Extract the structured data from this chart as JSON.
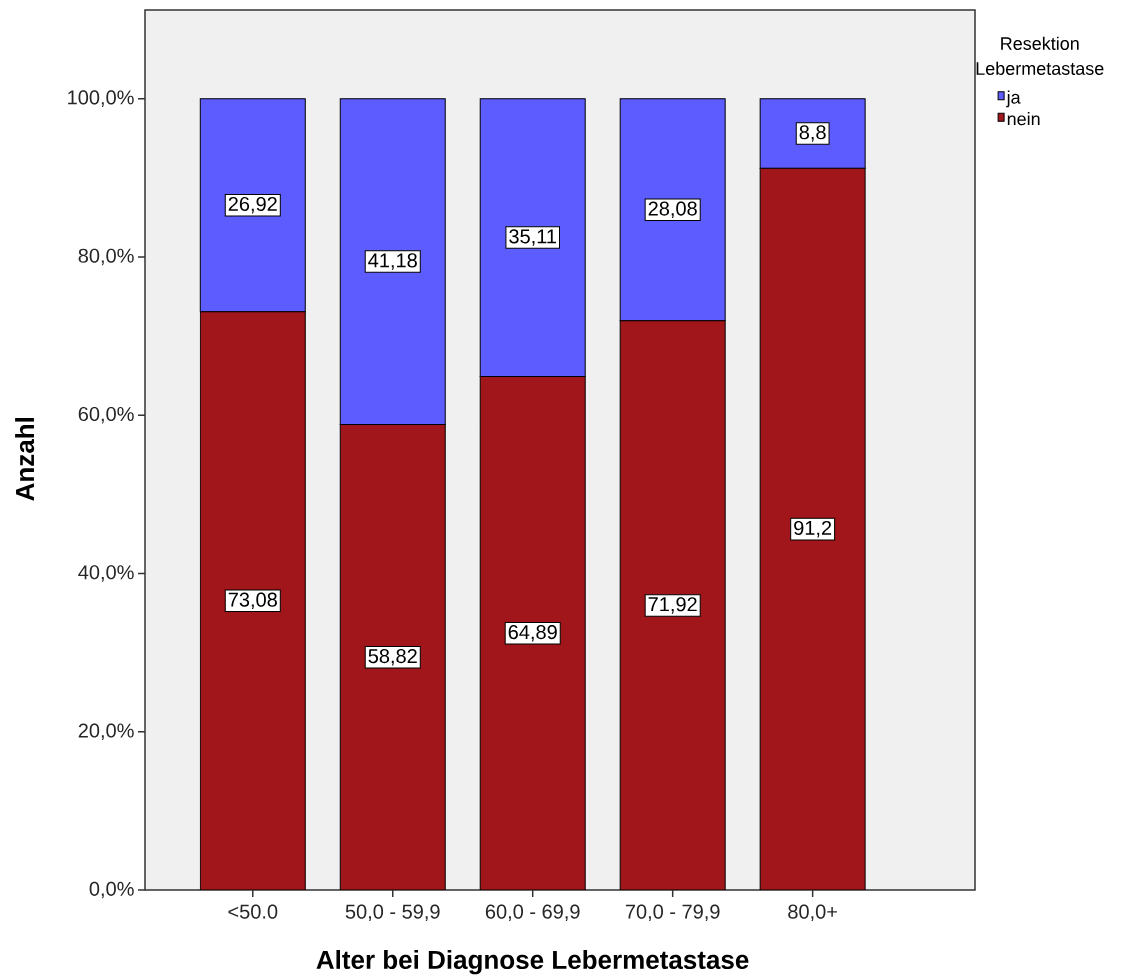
{
  "chart_data": {
    "type": "bar",
    "stacked": true,
    "xlabel": "Alter bei Diagnose Lebermetastase",
    "ylabel": "Anzahl",
    "legend_title": "Resektion Lebermetastase",
    "legend": "top right",
    "categories": [
      "<50.0",
      "50,0 - 59,9",
      "60,0 - 69,9",
      "70,0 - 79,9",
      "80,0+"
    ],
    "series": [
      {
        "name": "nein",
        "color": "#a0161a",
        "values": [
          73.08,
          58.82,
          64.89,
          71.92,
          91.2
        ],
        "value_labels": [
          "73,08",
          "58,82",
          "64,89",
          "71,92",
          "91,2"
        ]
      },
      {
        "name": "ja",
        "color": "#5c5cff",
        "values": [
          26.92,
          41.18,
          35.11,
          28.08,
          8.8
        ],
        "value_labels": [
          "26,92",
          "41,18",
          "35,11",
          "28,08",
          "8,8"
        ]
      }
    ],
    "ylim": [
      0,
      111.2
    ],
    "yticks": [
      {
        "value": 0,
        "label": "0,0%"
      },
      {
        "value": 20,
        "label": "20,0%"
      },
      {
        "value": 40,
        "label": "40,0%"
      },
      {
        "value": 60,
        "label": "60,0%"
      },
      {
        "value": 80,
        "label": "80,0%"
      },
      {
        "value": 100,
        "label": "100,0%"
      }
    ]
  }
}
